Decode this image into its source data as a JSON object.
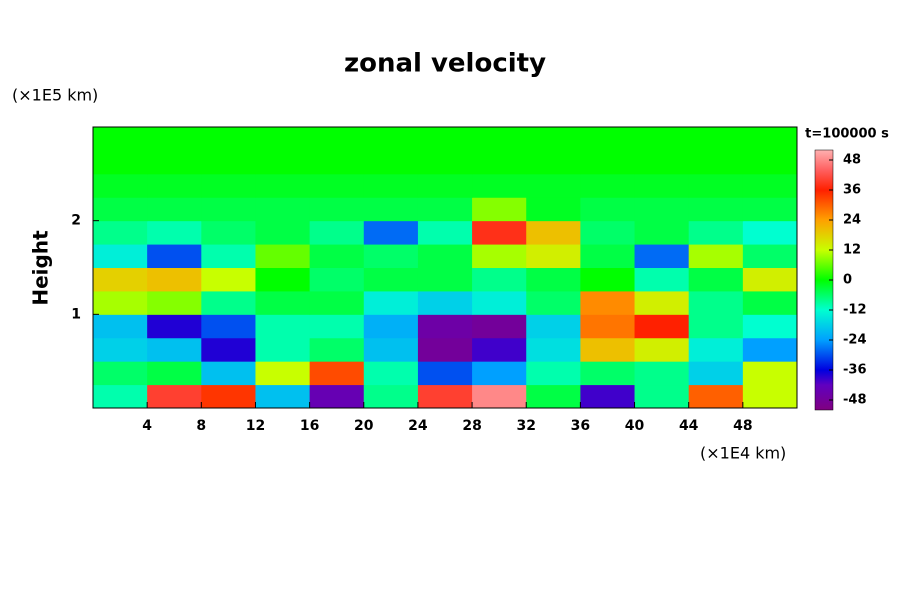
{
  "chart_data": {
    "type": "heatmap",
    "title": "zonal velocity",
    "y_label": "Height",
    "y_unit": "(×1E5 km)",
    "x_unit": "(×1E4 km)",
    "colorbar_title": "t=100000 s",
    "xlim": [
      0,
      52
    ],
    "ylim": [
      0,
      3
    ],
    "xticks": [
      4,
      8,
      12,
      16,
      20,
      24,
      28,
      32,
      36,
      40,
      44,
      48
    ],
    "yticks": [
      1,
      2
    ],
    "xbins": [
      0,
      4,
      8,
      12,
      16,
      20,
      24,
      28,
      32,
      36,
      40,
      44,
      48,
      52
    ],
    "ybins": [
      0,
      0.25,
      0.5,
      0.75,
      1,
      1.25,
      1.5,
      1.75,
      2,
      2.25,
      2.5,
      2.75,
      3
    ],
    "z": [
      [
        -10,
        40,
        34,
        -20,
        -44,
        -8,
        40,
        48,
        -4,
        -40,
        -8,
        30,
        12
      ],
      [
        -6,
        -4,
        -20,
        12,
        32,
        -10,
        -30,
        -24,
        -10,
        -6,
        -8,
        -18,
        12
      ],
      [
        -18,
        -20,
        -38,
        -10,
        -6,
        -20,
        -48,
        -40,
        -16,
        20,
        14,
        -14,
        -24
      ],
      [
        -20,
        -38,
        -30,
        -10,
        -10,
        -22,
        -46,
        -48,
        -18,
        28,
        36,
        -8,
        -12
      ],
      [
        10,
        8,
        -8,
        -4,
        -4,
        -14,
        -18,
        -14,
        -6,
        26,
        14,
        -8,
        -4
      ],
      [
        18,
        20,
        12,
        0,
        -6,
        -4,
        -4,
        -8,
        -4,
        0,
        -10,
        -4,
        14
      ],
      [
        -14,
        -30,
        -10,
        6,
        -4,
        -6,
        -4,
        10,
        14,
        -4,
        -28,
        10,
        -6
      ],
      [
        -8,
        -10,
        -6,
        -4,
        -8,
        -28,
        -10,
        38,
        20,
        -6,
        -4,
        -8,
        -12
      ],
      [
        -4,
        -4,
        -4,
        -4,
        -4,
        -4,
        -4,
        8,
        -2,
        -4,
        -4,
        -4,
        -4
      ],
      [
        -2,
        -2,
        -2,
        -2,
        -2,
        -2,
        -2,
        -2,
        -2,
        -2,
        -2,
        -2,
        -2
      ],
      [
        0,
        0,
        0,
        0,
        0,
        0,
        0,
        0,
        0,
        0,
        0,
        0,
        0
      ],
      [
        0,
        0,
        0,
        0,
        0,
        0,
        0,
        0,
        0,
        0,
        0,
        0,
        0
      ]
    ],
    "clim": [
      -52,
      52
    ],
    "colorbar_ticks": [
      -48,
      -36,
      -24,
      -12,
      0,
      12,
      24,
      36,
      48
    ],
    "colormap": [
      {
        "value": -52,
        "color": "#800080"
      },
      {
        "value": -42,
        "color": "#6000c0"
      },
      {
        "value": -36,
        "color": "#0000e0"
      },
      {
        "value": -24,
        "color": "#00a0ff"
      },
      {
        "value": -12,
        "color": "#00ffd0"
      },
      {
        "value": 0,
        "color": "#00ff00"
      },
      {
        "value": 12,
        "color": "#c8ff00"
      },
      {
        "value": 24,
        "color": "#ffa000"
      },
      {
        "value": 36,
        "color": "#ff2000"
      },
      {
        "value": 44,
        "color": "#ff6060"
      },
      {
        "value": 52,
        "color": "#ffb0b0"
      }
    ]
  }
}
